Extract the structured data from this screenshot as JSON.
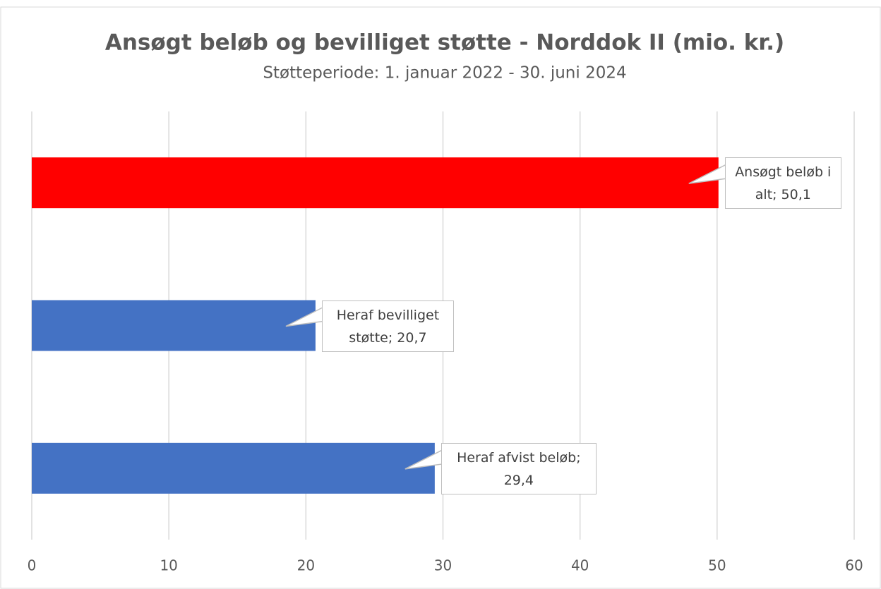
{
  "chart_data": {
    "type": "bar",
    "orientation": "horizontal",
    "title": "Ansøgt beløb og bevilliget støtte - Norddok II (mio. kr.)",
    "subtitle": "Støtteperiode: 1. januar 2022 - 30. juni 2024",
    "categories": [
      null,
      null,
      null
    ],
    "values": [
      50.1,
      20.7,
      29.4
    ],
    "value_labels": [
      "Ansøgt beløb i alt; 50,1",
      "Heraf bevilliget støtte; 20,7",
      "Heraf afvist beløb; 29,4"
    ],
    "colors": [
      "#ff0000",
      "#4472c4",
      "#4472c4"
    ],
    "xlim": [
      0,
      60
    ],
    "xticks": [
      0,
      10,
      20,
      30,
      40,
      50,
      60
    ],
    "grid": true
  }
}
